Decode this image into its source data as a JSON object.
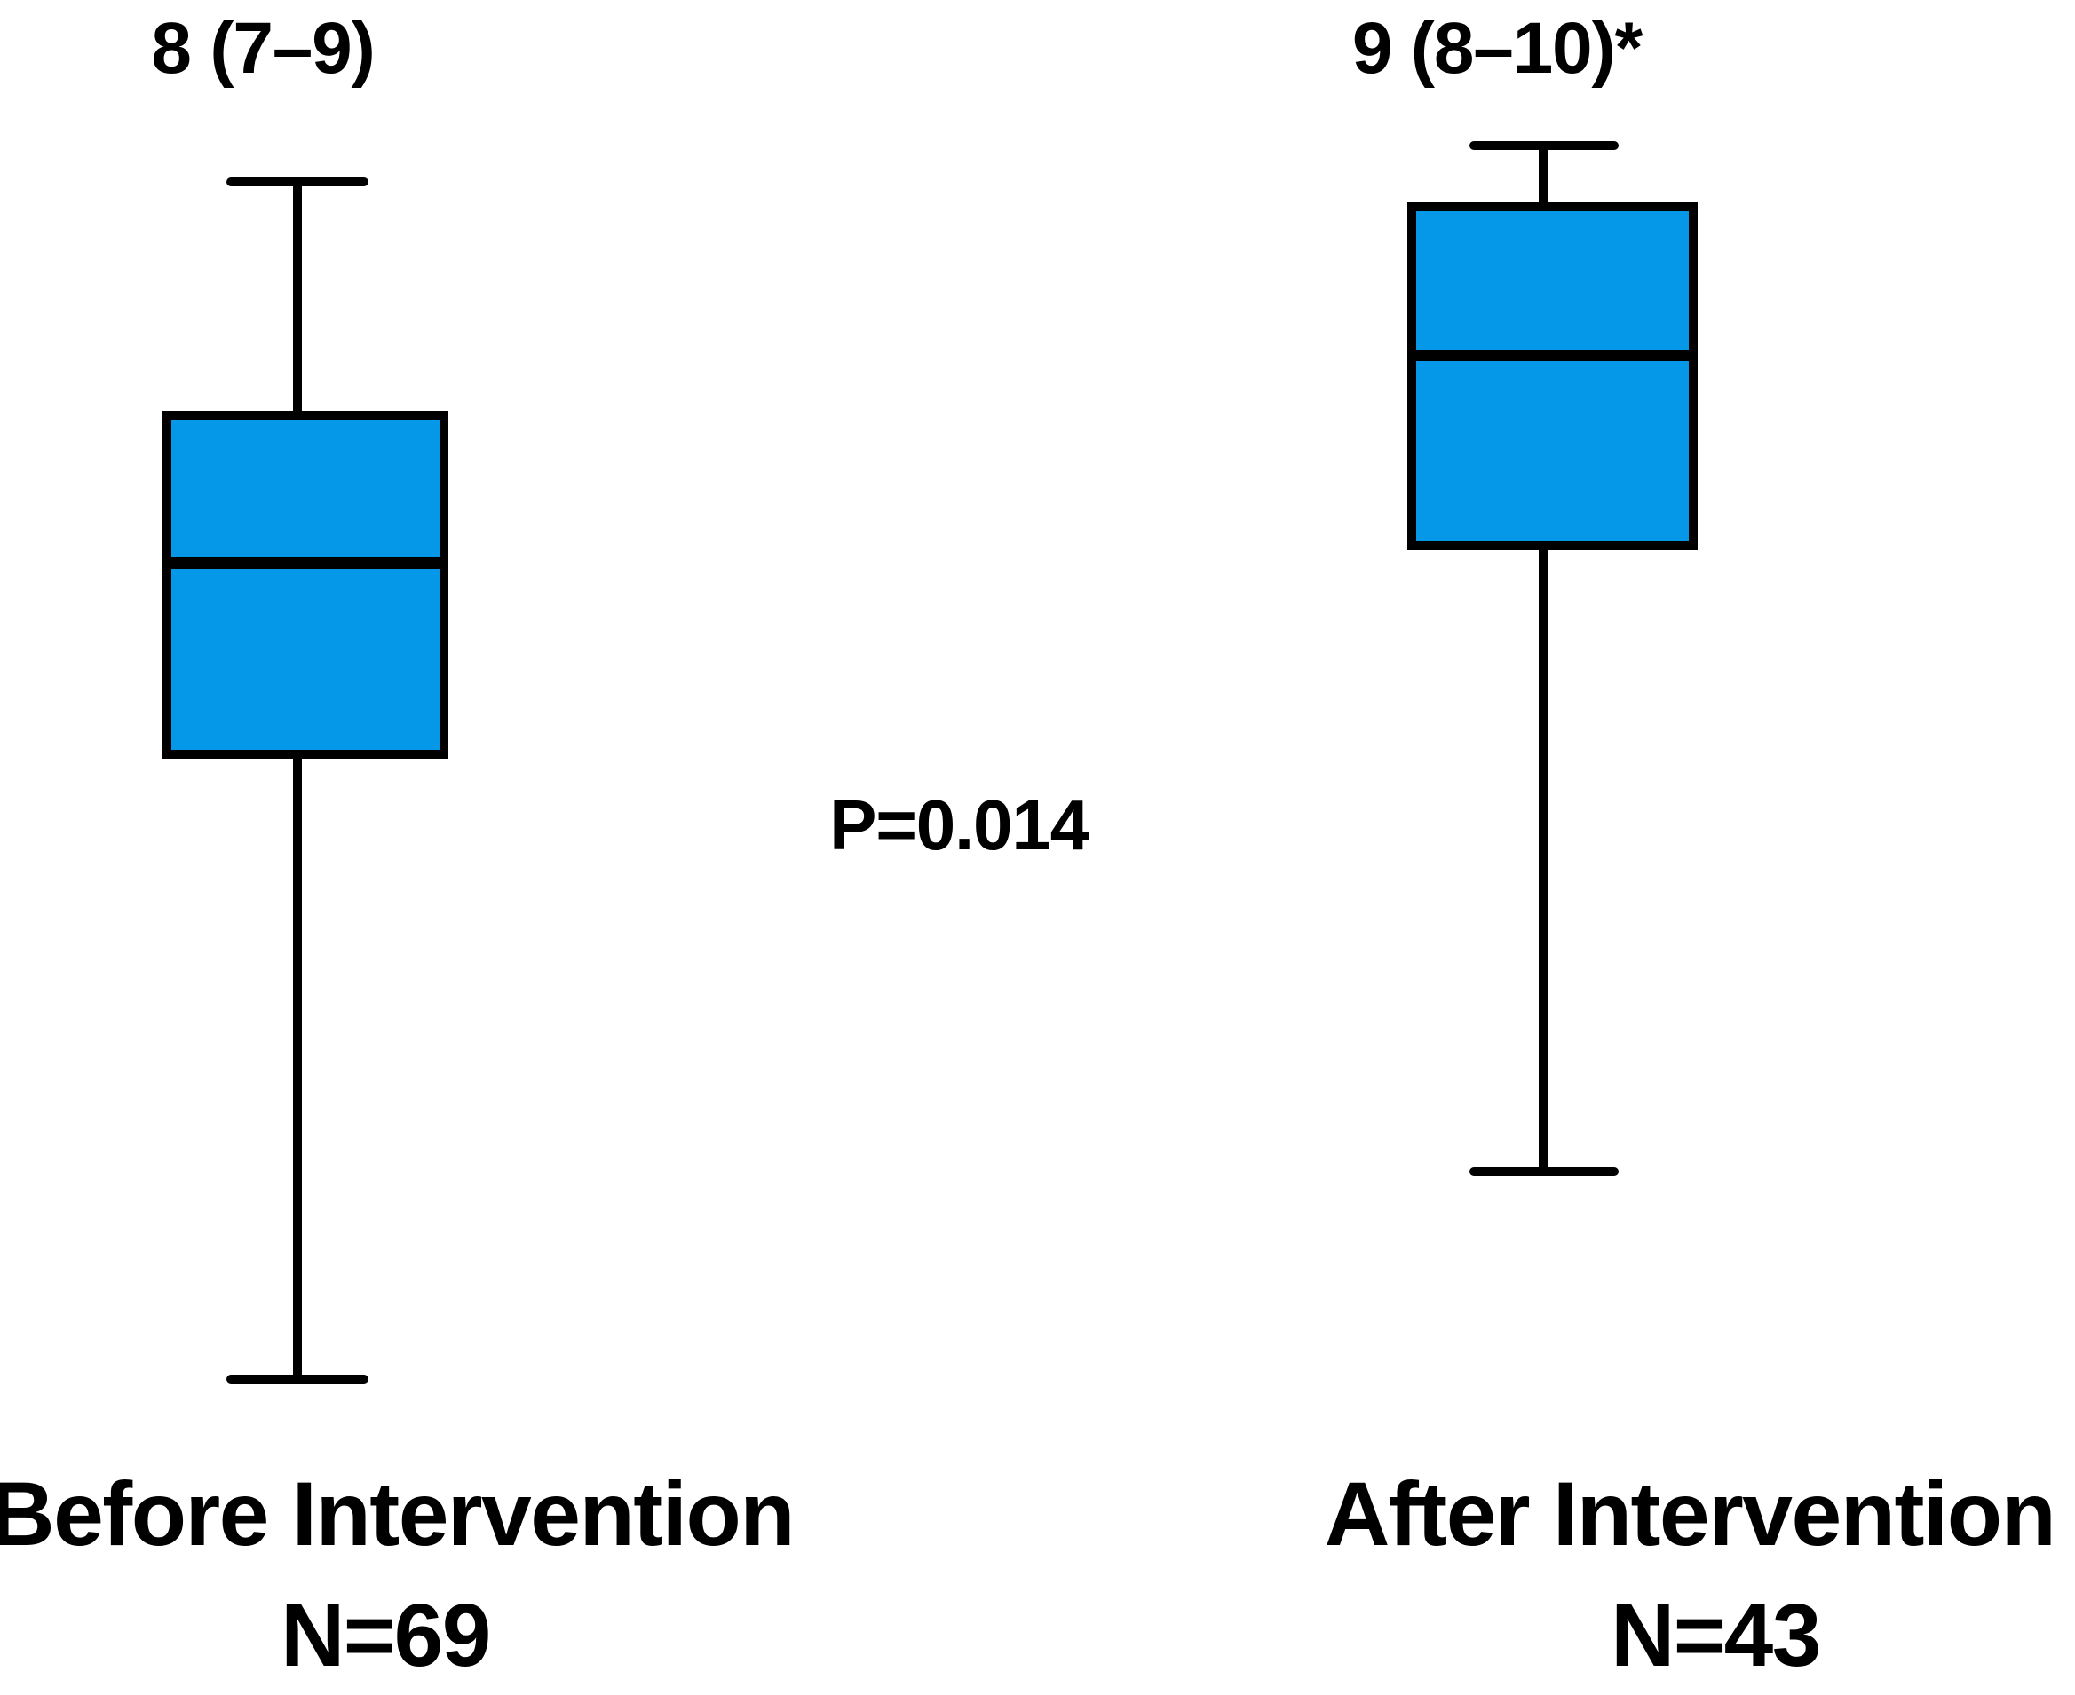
{
  "chart_data": {
    "type": "boxplot",
    "orientation": "vertical",
    "axes_visible": false,
    "grid": false,
    "legend": false,
    "p_value_label": "P=0.014",
    "groups": [
      {
        "label": "Before Intervention",
        "n_label": "N=69",
        "n": 69,
        "annotation": "8 (7–9)",
        "median": 8,
        "q1": 7,
        "q3": 9,
        "significance_marker": ""
      },
      {
        "label": "After Intervention",
        "n_label": "N=43",
        "n": 43,
        "annotation": "9 (8–10)*",
        "median": 9,
        "q1": 8,
        "q3": 10,
        "significance_marker": "*"
      }
    ],
    "colors": {
      "box_fill": "#0598E8",
      "line": "#000000",
      "background": "#FFFFFF"
    }
  }
}
